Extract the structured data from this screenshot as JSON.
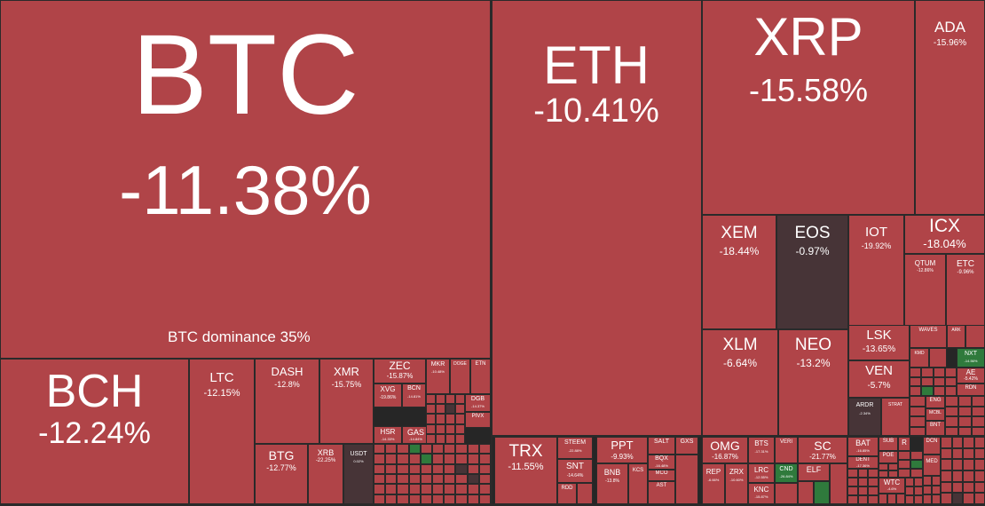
{
  "btc_dominance": "BTC dominance 35%",
  "coins": [
    {
      "sym": "BTC",
      "chg": "-11.38%"
    },
    {
      "sym": "ETH",
      "chg": "-10.41%"
    },
    {
      "sym": "XRP",
      "chg": "-15.58%"
    },
    {
      "sym": "ADA",
      "chg": "-15.96%"
    },
    {
      "sym": "BCH",
      "chg": "-12.24%"
    },
    {
      "sym": "LTC",
      "chg": "-12.15%"
    },
    {
      "sym": "DASH",
      "chg": "-12.8%"
    },
    {
      "sym": "XMR",
      "chg": "-15.75%"
    },
    {
      "sym": "ZEC",
      "chg": "-15.87%"
    },
    {
      "sym": "XVG",
      "chg": "-19.86%"
    },
    {
      "sym": "BCN",
      "chg": "-14.81%"
    },
    {
      "sym": "MKR",
      "chg": "-10.48%"
    },
    {
      "sym": "DOGE",
      "chg": ""
    },
    {
      "sym": "ETN",
      "chg": ""
    },
    {
      "sym": "DGB",
      "chg": "-14.37%"
    },
    {
      "sym": "PIVX",
      "chg": ""
    },
    {
      "sym": "HSR",
      "chg": "-14.33%"
    },
    {
      "sym": "GAS",
      "chg": "-14.84%"
    },
    {
      "sym": "BTG",
      "chg": "-12.77%"
    },
    {
      "sym": "XRB",
      "chg": "-22.25%"
    },
    {
      "sym": "USDT",
      "chg": "0.02%"
    },
    {
      "sym": "XEM",
      "chg": "-18.44%"
    },
    {
      "sym": "EOS",
      "chg": "-0.97%"
    },
    {
      "sym": "IOT",
      "chg": "-19.92%"
    },
    {
      "sym": "ICX",
      "chg": "-18.04%"
    },
    {
      "sym": "QTUM",
      "chg": "-12.86%"
    },
    {
      "sym": "ETC",
      "chg": "-9.96%"
    },
    {
      "sym": "XLM",
      "chg": "-6.64%"
    },
    {
      "sym": "NEO",
      "chg": "-13.2%"
    },
    {
      "sym": "LSK",
      "chg": "-13.65%"
    },
    {
      "sym": "VEN",
      "chg": "-5.7%"
    },
    {
      "sym": "ARDR",
      "chg": "-2.34%"
    },
    {
      "sym": "STRAT",
      "chg": ""
    },
    {
      "sym": "WAVES",
      "chg": ""
    },
    {
      "sym": "ARK",
      "chg": ""
    },
    {
      "sym": "KMD",
      "chg": ""
    },
    {
      "sym": "NXT",
      "chg": "-14.56%"
    },
    {
      "sym": "AE",
      "chg": "-5.42%"
    },
    {
      "sym": "RDN",
      "chg": ""
    },
    {
      "sym": "ENG",
      "chg": ""
    },
    {
      "sym": "MCBL",
      "chg": ""
    },
    {
      "sym": "BNT",
      "chg": ""
    },
    {
      "sym": "TRX",
      "chg": "-11.55%"
    },
    {
      "sym": "STEEM",
      "chg": "-22.88%"
    },
    {
      "sym": "SNT",
      "chg": "-14.64%"
    },
    {
      "sym": "RDD",
      "chg": ""
    },
    {
      "sym": "PPT",
      "chg": "-9.93%"
    },
    {
      "sym": "BNB",
      "chg": "-13.8%"
    },
    {
      "sym": "KCS",
      "chg": ""
    },
    {
      "sym": "SALT",
      "chg": ""
    },
    {
      "sym": "GXS",
      "chg": ""
    },
    {
      "sym": "BQX",
      "chg": "-16.48%"
    },
    {
      "sym": "MCO",
      "chg": ""
    },
    {
      "sym": "AST",
      "chg": ""
    },
    {
      "sym": "OMG",
      "chg": "-16.87%"
    },
    {
      "sym": "BTS",
      "chg": "-17.31%"
    },
    {
      "sym": "VERI",
      "chg": ""
    },
    {
      "sym": "REP",
      "chg": "-6.66%"
    },
    {
      "sym": "ZRX",
      "chg": "-10.60%"
    },
    {
      "sym": "LRC",
      "chg": "-12.55%"
    },
    {
      "sym": "CND",
      "chg": "-26.84%"
    },
    {
      "sym": "KNC",
      "chg": "-15.87%"
    },
    {
      "sym": "SC",
      "chg": "-21.77%"
    },
    {
      "sym": "ELF",
      "chg": ""
    },
    {
      "sym": "BAT",
      "chg": "-16.85%"
    },
    {
      "sym": "DENT",
      "chg": "-17.36%"
    },
    {
      "sym": "SUB",
      "chg": ""
    },
    {
      "sym": "R",
      "chg": ""
    },
    {
      "sym": "POE",
      "chg": ""
    },
    {
      "sym": "WTC",
      "chg": "-4.6%"
    },
    {
      "sym": "DCN",
      "chg": ""
    },
    {
      "sym": "MED",
      "chg": ""
    }
  ],
  "colors": {
    "loss": "#b04448",
    "neutral": "#473437",
    "gain": "#2f7a3c",
    "border": "#2a2a2a"
  }
}
